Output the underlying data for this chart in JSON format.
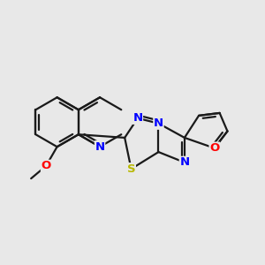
{
  "background_color": "#e8e8e8",
  "bond_color": "#1a1a1a",
  "atom_colors": {
    "N": "#0000ff",
    "O": "#ff0000",
    "S": "#b8b800",
    "C": "#1a1a1a"
  },
  "figsize": [
    3.0,
    3.0
  ],
  "dpi": 100,
  "lw": 1.6,
  "fs": 9.5
}
